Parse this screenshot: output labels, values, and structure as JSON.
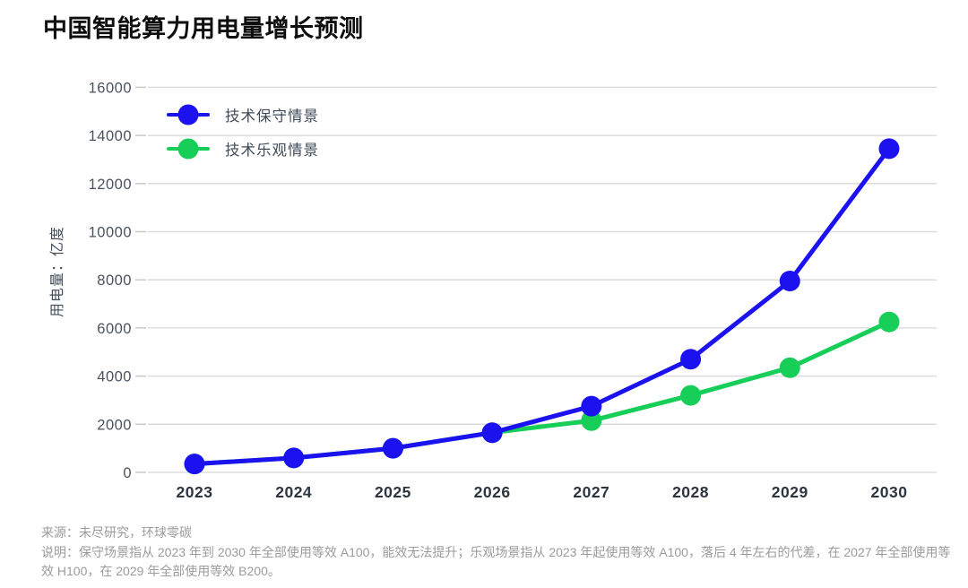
{
  "title": "中国智能算力用电量增长预测",
  "chart_data": {
    "type": "line",
    "title": "中国智能算力用电量增长预测",
    "xlabel": "",
    "ylabel": "用电量：亿度",
    "categories": [
      "2023",
      "2024",
      "2025",
      "2026",
      "2027",
      "2028",
      "2029",
      "2030"
    ],
    "series": [
      {
        "key": "optimistic",
        "name": "技术乐观情景",
        "color": "#17ce58",
        "values": [
          350,
          600,
          1000,
          1650,
          2150,
          3200,
          4350,
          6250
        ]
      },
      {
        "key": "conservative",
        "name": "技术保守情景",
        "color": "#1b12ef",
        "values": [
          350,
          600,
          1000,
          1650,
          2750,
          4700,
          7950,
          13450
        ]
      }
    ],
    "legend_order": [
      "conservative",
      "optimistic"
    ],
    "ylim": [
      0,
      16000
    ],
    "yticks": [
      0,
      2000,
      4000,
      6000,
      8000,
      10000,
      12000,
      14000,
      16000
    ],
    "grid": true,
    "legend_position": "upper-left"
  },
  "legend": {
    "conservative_label": "技术保守情景",
    "optimistic_label": "技术乐观情景"
  },
  "footer": {
    "source": "来源：未尽研究，环球零碳",
    "note": "说明：保守场景指从 2023 年到 2030 年全部使用等效 A100，能效无法提升；乐观场景指从 2023 年起使用等效 A100，落后 4 年左右的代差，在 2027 年全部使用等效 H100，在 2029 年全部使用等效 B200。"
  },
  "colors": {
    "conservative": "#1b12ef",
    "optimistic": "#17ce58",
    "gridline": "#d7d7d7",
    "tick_label": "#49525f",
    "x_label": "#2c3540",
    "title": "#0e0e0e",
    "footer_text": "#9b9b9b"
  }
}
